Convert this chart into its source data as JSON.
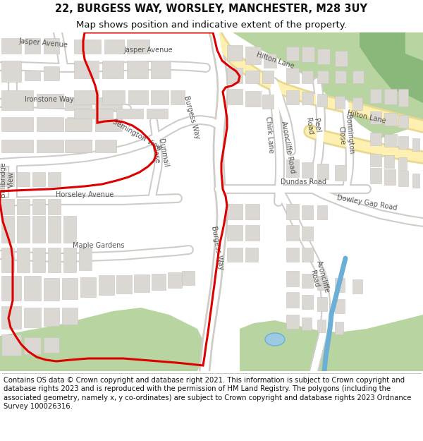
{
  "title_line1": "22, BURGESS WAY, WORSLEY, MANCHESTER, M28 3UY",
  "title_line2": "Map shows position and indicative extent of the property.",
  "footer_text": "Contains OS data © Crown copyright and database right 2021. This information is subject to Crown copyright and database rights 2023 and is reproduced with the permission of HM Land Registry. The polygons (including the associated geometry, namely x, y co-ordinates) are subject to Crown copyright and database rights 2023 Ordnance Survey 100026316.",
  "title_fontsize": 10.5,
  "subtitle_fontsize": 9.5,
  "footer_fontsize": 7.2,
  "map_bg": "#f0ede8",
  "road_color": "#ffffff",
  "road_edge": "#d0ccc8",
  "green_color": "#b8d4a0",
  "green_dark": "#8ab87a",
  "water_color": "#9ecae1",
  "canal_color": "#6baed6",
  "yellow_road_fill": "#fef0b0",
  "yellow_road_edge": "#e8d890",
  "block_color": "#dbd8d3",
  "block_edge": "#c8c4bf",
  "red_boundary": "#dd0000",
  "white": "#ffffff",
  "title_bg": "#ffffff",
  "footer_bg": "#ffffff",
  "text_color": "#555555"
}
